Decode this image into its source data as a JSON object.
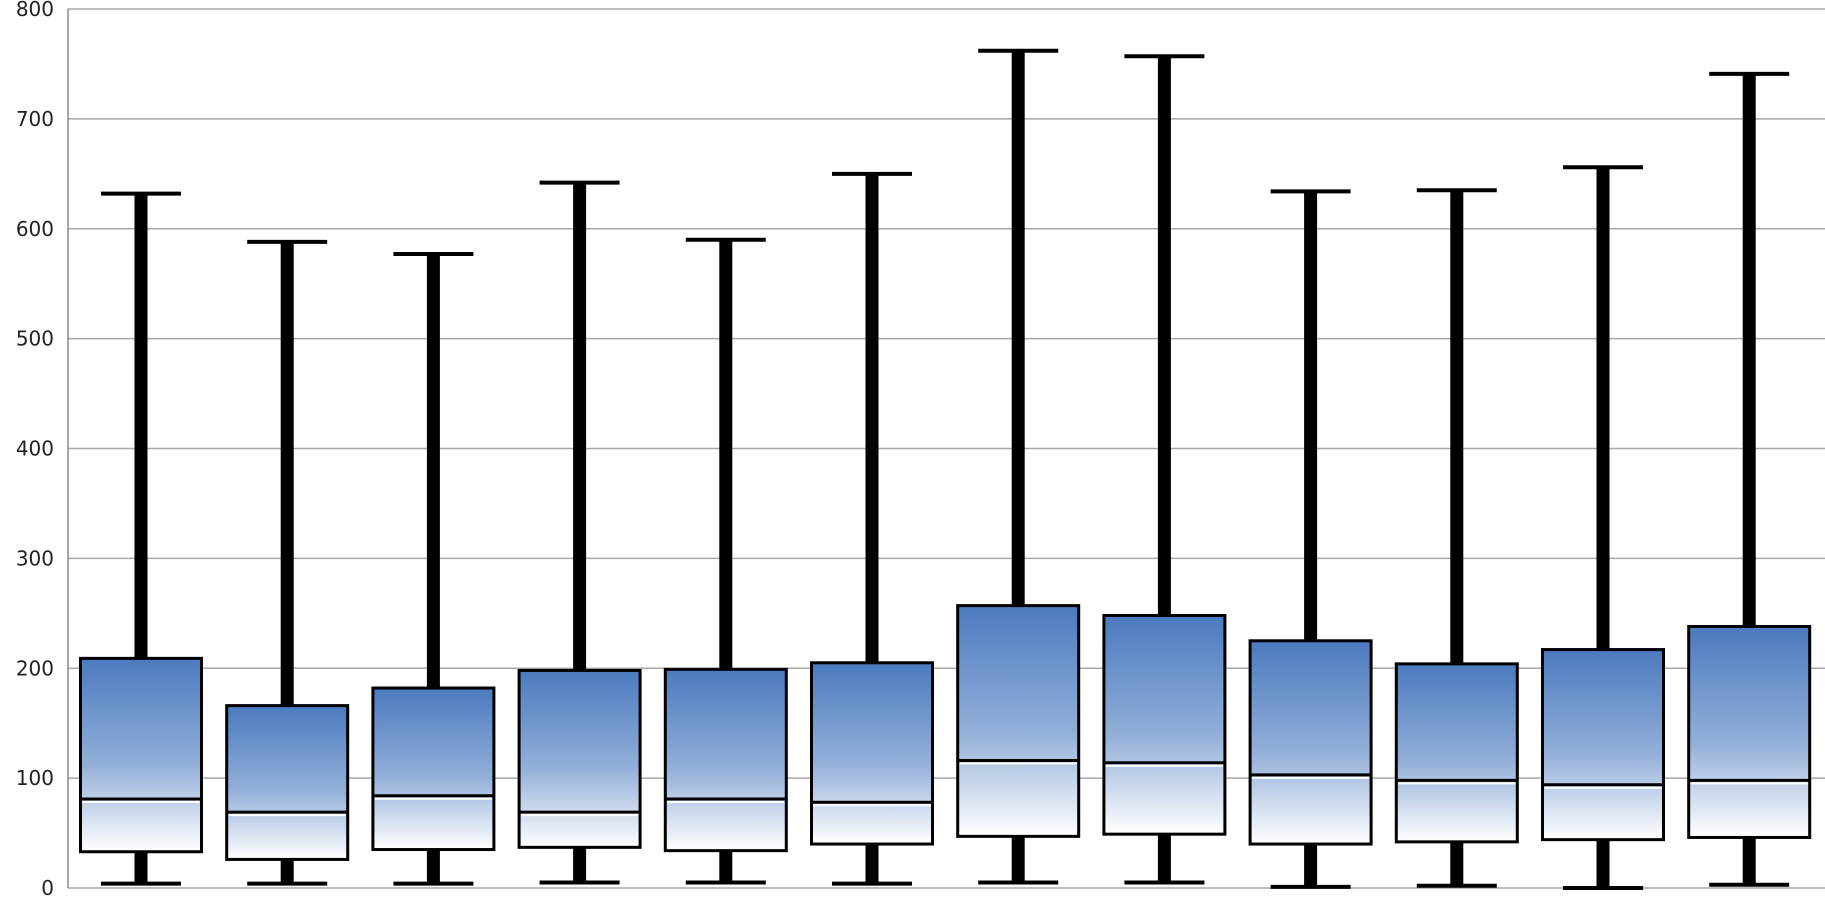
{
  "chart_data": {
    "type": "box",
    "title": "",
    "xlabel": "",
    "ylabel": "",
    "ylim": [
      0,
      800
    ],
    "yticks": [
      0,
      100,
      200,
      300,
      400,
      500,
      600,
      700,
      800
    ],
    "grid": true,
    "legend": "none",
    "colors": {
      "box_top": "#4a7abf",
      "box_mid": "#93afd9",
      "box_bottom": "#ffffff",
      "outline": "#000000",
      "median_highlight": "#ffffff",
      "grid": "#a8a8a8"
    },
    "boxes": [
      {
        "min": 4,
        "q1": 33,
        "median": 81,
        "q3": 209,
        "max": 632
      },
      {
        "min": 4,
        "q1": 26,
        "median": 69,
        "q3": 166,
        "max": 588
      },
      {
        "min": 4,
        "q1": 35,
        "median": 84,
        "q3": 182,
        "max": 577
      },
      {
        "min": 5,
        "q1": 37,
        "median": 69,
        "q3": 198,
        "max": 642
      },
      {
        "min": 5,
        "q1": 34,
        "median": 81,
        "q3": 199,
        "max": 590
      },
      {
        "min": 4,
        "q1": 40,
        "median": 78,
        "q3": 205,
        "max": 650
      },
      {
        "min": 5,
        "q1": 47,
        "median": 116,
        "q3": 257,
        "max": 762
      },
      {
        "min": 5,
        "q1": 49,
        "median": 114,
        "q3": 248,
        "max": 757
      },
      {
        "min": 1,
        "q1": 40,
        "median": 103,
        "q3": 225,
        "max": 634
      },
      {
        "min": 2,
        "q1": 42,
        "median": 98,
        "q3": 204,
        "max": 635
      },
      {
        "min": 0,
        "q1": 44,
        "median": 94,
        "q3": 217,
        "max": 656
      },
      {
        "min": 3,
        "q1": 46,
        "median": 98,
        "q3": 238,
        "max": 741
      }
    ]
  }
}
